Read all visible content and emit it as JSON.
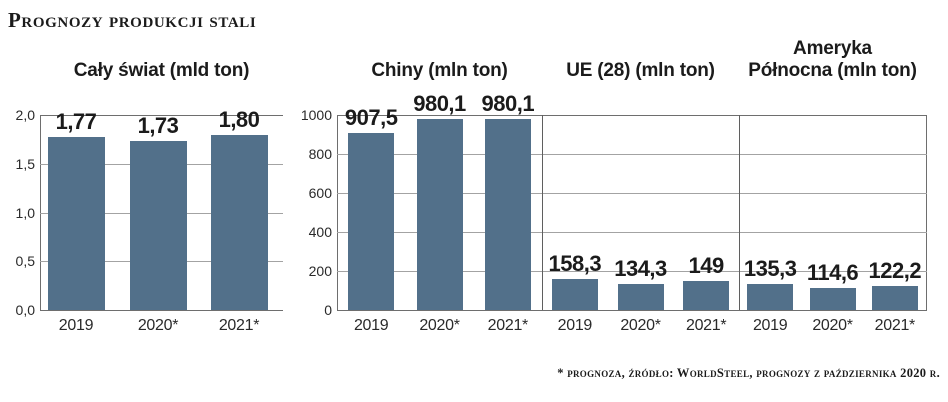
{
  "header": {
    "title": "Prognozy produkcji stali"
  },
  "footer": {
    "note": "* prognoza, źródło: WorldSteel, prognozy z października 2020 r."
  },
  "colors": {
    "bar": "#52708a",
    "frame": "#6e6e6e",
    "divider": "#5f5f5f",
    "grid_light": "#a3a3a3",
    "text": "#1b1b1b"
  },
  "chart_data": [
    {
      "type": "bar",
      "title": "Cały świat (mld ton)",
      "title_lines": [
        "Cały świat (mld ton)"
      ],
      "categories": [
        "2019",
        "2020*",
        "2021*"
      ],
      "values": [
        1.77,
        1.73,
        1.8
      ],
      "value_labels": [
        "1,77",
        "1,73",
        "1,80"
      ],
      "ylabel": "mld ton",
      "ylim": [
        0,
        2
      ],
      "ytick_values": [
        2,
        1.5,
        1,
        0.5,
        0
      ],
      "ytick_labels": [
        "2,0",
        "1,5",
        "1,0",
        "0,5",
        "0,0"
      ],
      "grid": true,
      "legend": null
    },
    {
      "type": "bar",
      "categories": [
        "2019",
        "2020*",
        "2021*"
      ],
      "ylim": [
        0,
        1000
      ],
      "ytick_values": [
        1000,
        800,
        600,
        400,
        200,
        0
      ],
      "ytick_labels": [
        "1000",
        "800",
        "600",
        "400",
        "200",
        "0"
      ],
      "grid": true,
      "legend": null,
      "series": [
        {
          "name": "Chiny (mln ton)",
          "title_lines": [
            "Chiny (mln ton)"
          ],
          "values": [
            907.5,
            980.1,
            980.1
          ],
          "value_labels": [
            "907,5",
            "980,1",
            "980,1"
          ]
        },
        {
          "name": "UE (28) (mln ton)",
          "title_lines": [
            "UE (28) (mln ton)"
          ],
          "values": [
            158.3,
            134.3,
            149
          ],
          "value_labels": [
            "158,3",
            "134,3",
            "149"
          ]
        },
        {
          "name": "Ameryka Północna (mln ton)",
          "title_lines": [
            "Ameryka",
            "Północna (mln ton)"
          ],
          "values": [
            135.3,
            114.6,
            122.2
          ],
          "value_labels": [
            "135,3",
            "114,6",
            "122,2"
          ]
        }
      ]
    }
  ]
}
